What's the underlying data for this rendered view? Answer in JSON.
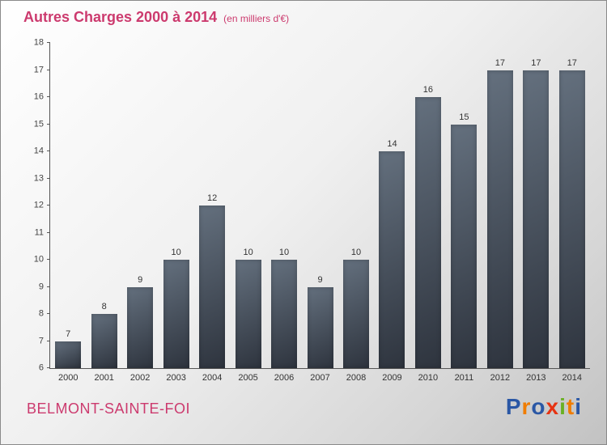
{
  "header": {
    "title": "Autres Charges 2000 à 2014",
    "subtitle": "(en milliers d'€)"
  },
  "footer": {
    "location": "BELMONT-SAINTE-FOI"
  },
  "logo": {
    "name": "Proxiti",
    "letters": [
      {
        "char": "P",
        "color": "#2a57a5"
      },
      {
        "char": "r",
        "color": "#f07d00"
      },
      {
        "char": "o",
        "color": "#2a57a5"
      },
      {
        "char": "x",
        "color": "#e63312"
      },
      {
        "char": "i",
        "color": "#6ab023"
      },
      {
        "char": "t",
        "color": "#f07d00"
      },
      {
        "char": "i",
        "color": "#2a57a5"
      }
    ]
  },
  "chart_data": {
    "type": "bar",
    "title": "Autres Charges 2000 à 2014",
    "subtitle": "(en milliers d'€)",
    "categories": [
      "2000",
      "2001",
      "2002",
      "2003",
      "2004",
      "2005",
      "2006",
      "2007",
      "2008",
      "2009",
      "2010",
      "2011",
      "2012",
      "2013",
      "2014"
    ],
    "values": [
      7,
      8,
      9,
      10,
      12,
      10,
      10,
      9,
      10,
      14,
      16,
      15,
      17,
      17,
      17
    ],
    "xlabel": "",
    "ylabel": "",
    "ylim": [
      6,
      18
    ],
    "ytick_step": 1,
    "grid": false,
    "legend": "none",
    "bar_color_top": "#64707e",
    "bar_color_bottom": "#2e343e",
    "accent_color": "#cc3a6e"
  }
}
